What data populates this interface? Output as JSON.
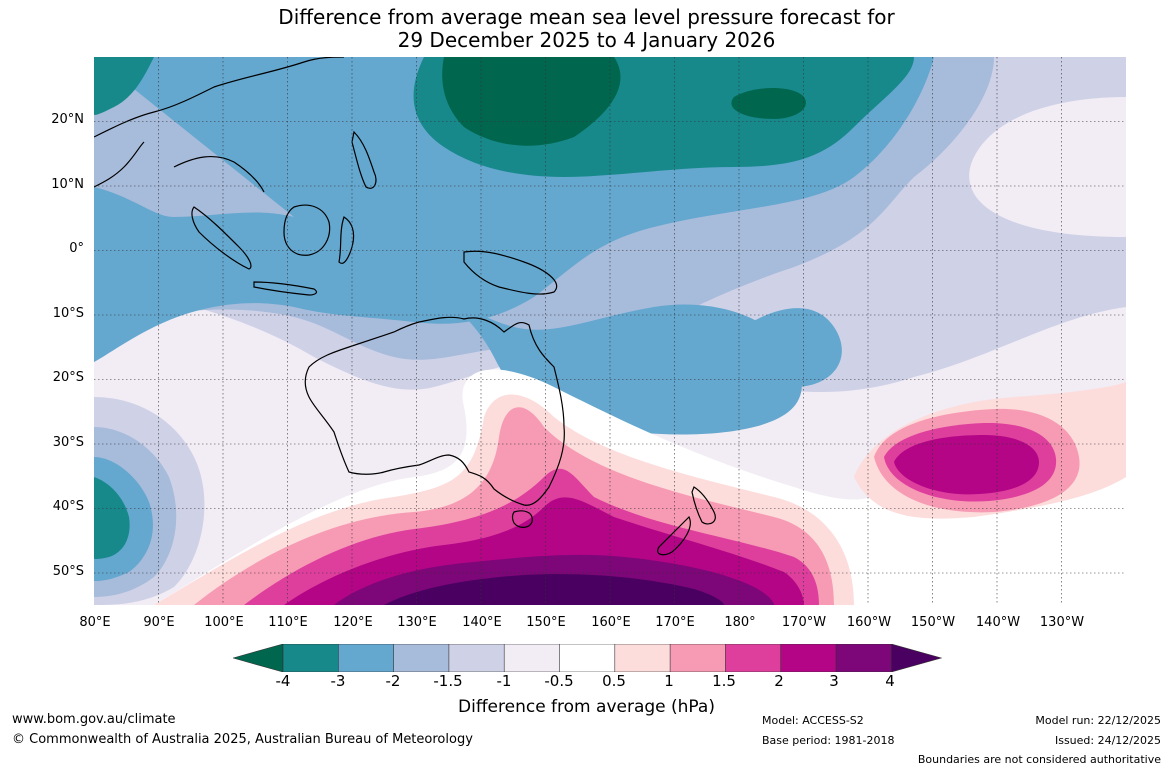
{
  "title": {
    "line1": "Difference from average mean sea level pressure forecast for",
    "line2": "29 December 2025 to 4 January 2026"
  },
  "map": {
    "lat_labels": [
      "20°N",
      "10°N",
      "0°",
      "10°S",
      "20°S",
      "30°S",
      "40°S",
      "50°S"
    ],
    "lon_labels": [
      "80°E",
      "90°E",
      "100°E",
      "110°E",
      "120°E",
      "130°E",
      "140°E",
      "150°E",
      "160°E",
      "170°E",
      "180°",
      "170°W",
      "160°W",
      "150°W",
      "140°W",
      "130°W"
    ],
    "lat_range": [
      -55,
      30
    ],
    "lon_range": [
      80,
      240
    ]
  },
  "colorbar": {
    "ticks": [
      "-4",
      "-3",
      "-2",
      "-1.5",
      "-1",
      "-0.5",
      "0.5",
      "1",
      "1.5",
      "2",
      "3",
      "4"
    ],
    "colors": [
      "#00664e",
      "#17898a",
      "#64a7cf",
      "#a7bbdb",
      "#cfd1e7",
      "#f2ecf4",
      "#ffffff",
      "#fddcdc",
      "#f79bb4",
      "#de3f9d",
      "#b30586",
      "#7d0679",
      "#4a0060"
    ],
    "title": "Difference from average (hPa)"
  },
  "footer": {
    "website": "www.bom.gov.au/climate",
    "copyright": "© Commonwealth of Australia 2025, Australian Bureau of Meteorology",
    "model": "Model: ACCESS-S2",
    "base_period": "Base period: 1981-2018",
    "model_run": "Model run: 22/12/2025",
    "issued": "Issued: 24/12/2025",
    "disclaimer": "Boundaries are not considered authoritative"
  }
}
